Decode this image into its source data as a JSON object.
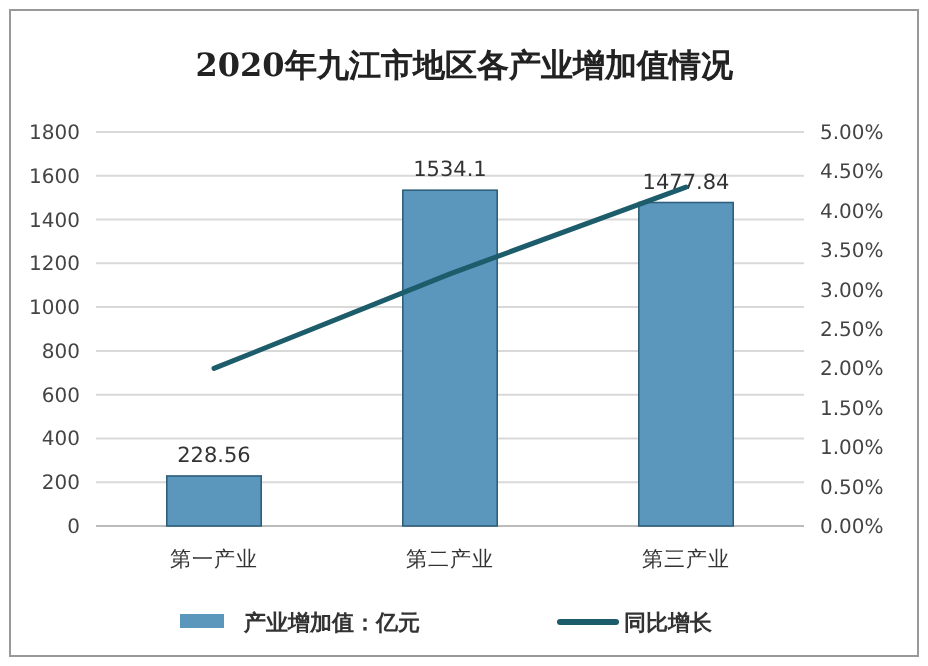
{
  "chart_data": {
    "type": "bar",
    "title": "2020年九江市地区各产业增加值情况",
    "categories": [
      "第一产业",
      "第二产业",
      "第三产业"
    ],
    "series": [
      {
        "name": "产业增加值：亿元",
        "color": "#5b97bd",
        "values": [
          228.56,
          1534.1,
          1477.84
        ]
      },
      {
        "name": "同比增长",
        "type": "line",
        "axis": "y2",
        "color": "#1d5c6b",
        "values": [
          2.0,
          3.2,
          4.3
        ]
      }
    ],
    "value_labels": [
      "228.56",
      "1534.1",
      "1477.84"
    ],
    "ylim": [
      0,
      1800
    ],
    "yticks": [
      0,
      200,
      400,
      600,
      800,
      1000,
      1200,
      1400,
      1600,
      1800
    ],
    "y2lim": [
      0,
      5
    ],
    "y2ticks": [
      {
        "value": 0,
        "label": "0.00%"
      },
      {
        "value": 0.5,
        "label": "0.50%"
      },
      {
        "value": 1,
        "label": "1.00%"
      },
      {
        "value": 1.5,
        "label": "1.50%"
      },
      {
        "value": 2,
        "label": "2.00%"
      },
      {
        "value": 2.5,
        "label": "2.50%"
      },
      {
        "value": 3,
        "label": "3.00%"
      },
      {
        "value": 3.5,
        "label": "3.50%"
      },
      {
        "value": 4,
        "label": "4.00%"
      },
      {
        "value": 4.5,
        "label": "4.50%"
      },
      {
        "value": 5,
        "label": "5.00%"
      }
    ],
    "grid": "y",
    "legend": "bottom",
    "marker": "none",
    "line_style": "solid"
  }
}
